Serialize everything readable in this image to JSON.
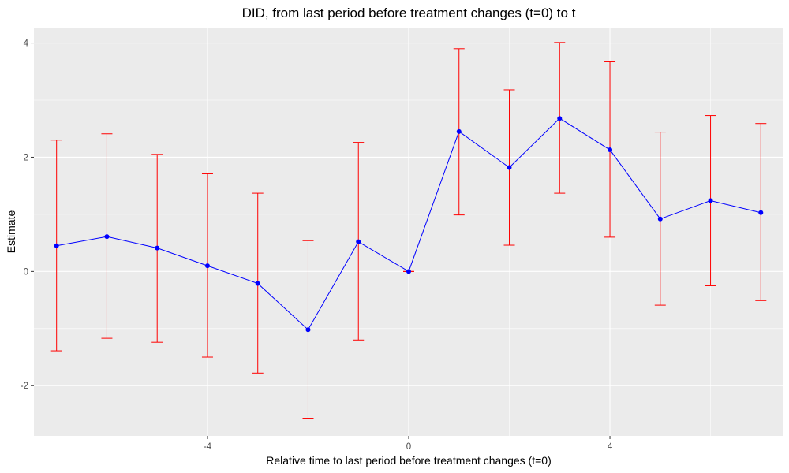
{
  "chart_data": {
    "type": "scatter",
    "title": "DID, from last period before treatment changes (t=0) to t",
    "xlabel": "Relative time to last period before treatment changes (t=0)",
    "ylabel": "Estimate",
    "xlim": [
      -7.45,
      7.45
    ],
    "ylim": [
      -2.88,
      4.27
    ],
    "x_ticks": [
      -4,
      0,
      4
    ],
    "y_ticks": [
      -2,
      0,
      2,
      4
    ],
    "x_tick_labels": [
      "-4",
      "0",
      "4"
    ],
    "y_tick_labels": [
      "-2",
      "0",
      "2",
      "4"
    ],
    "grid": true,
    "legend": "none",
    "colors": {
      "panel_background": "#ebebeb",
      "grid": "#ffffff",
      "line": "#0000ff",
      "point": "#0000ff",
      "error_bar": "#ff0000"
    },
    "series": [
      {
        "x": [
          -7,
          -6,
          -5,
          -4,
          -3,
          -2,
          -1,
          0,
          1,
          2,
          3,
          4,
          5,
          6,
          7
        ],
        "y": [
          0.45,
          0.61,
          0.41,
          0.1,
          -0.21,
          -1.02,
          0.52,
          0.0,
          2.45,
          1.82,
          2.68,
          2.13,
          0.92,
          1.24,
          1.03
        ],
        "lower": [
          -1.39,
          -1.17,
          -1.24,
          -1.5,
          -1.78,
          -2.57,
          -1.2,
          0.0,
          0.99,
          0.46,
          1.37,
          0.6,
          -0.59,
          -0.25,
          -0.51
        ],
        "upper": [
          2.3,
          2.41,
          2.05,
          1.71,
          1.37,
          0.54,
          2.26,
          0.0,
          3.9,
          3.18,
          4.01,
          3.67,
          2.44,
          2.73,
          2.59
        ]
      }
    ]
  }
}
